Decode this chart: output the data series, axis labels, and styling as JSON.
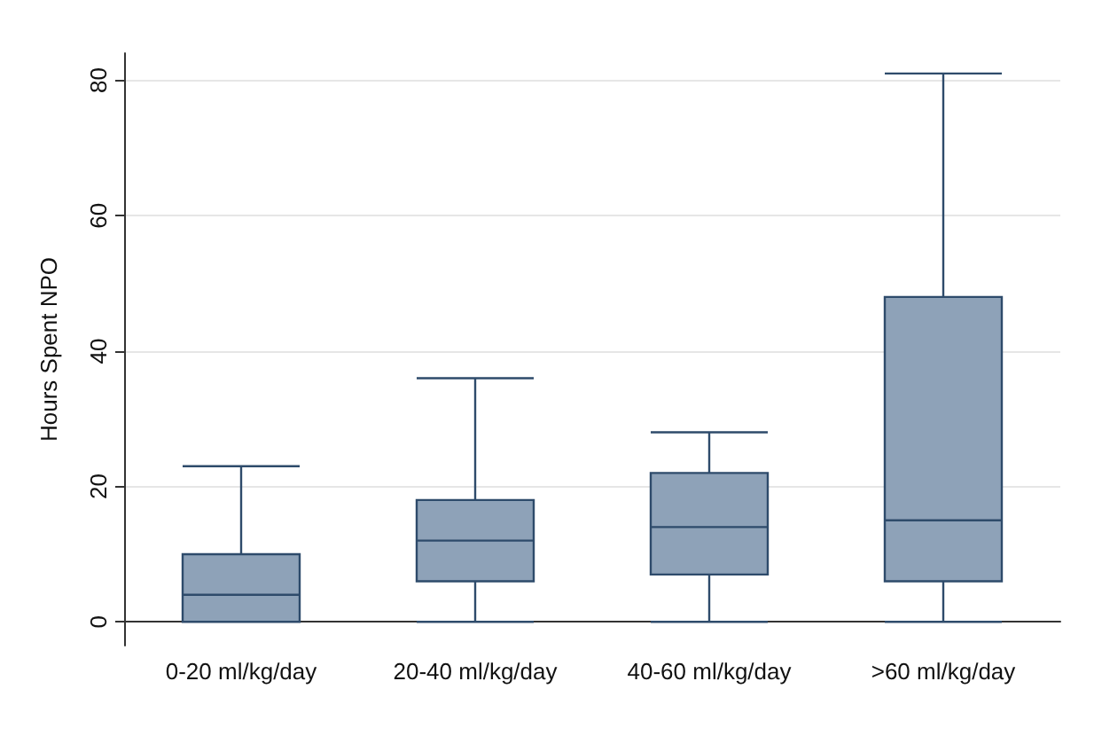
{
  "chart_data": {
    "type": "box",
    "ylabel": "Hours Spent NPO",
    "categories": [
      "0-20 ml/kg/day",
      "20-40 ml/kg/day",
      "40-60 ml/kg/day",
      ">60 ml/kg/day"
    ],
    "boxes": [
      {
        "low": 0,
        "q1": 0,
        "median": 4,
        "q3": 10,
        "high": 23
      },
      {
        "low": 0,
        "q1": 6,
        "median": 12,
        "q3": 18,
        "high": 36
      },
      {
        "low": 0,
        "q1": 7,
        "median": 14,
        "q3": 22,
        "high": 28
      },
      {
        "low": 0,
        "q1": 6,
        "median": 15,
        "q3": 48,
        "high": 81
      }
    ],
    "color": "#8ea2b8",
    "ylim": [
      -3.5,
      84
    ],
    "yticks": [
      0,
      20,
      40,
      60,
      80
    ],
    "grid": "y"
  }
}
